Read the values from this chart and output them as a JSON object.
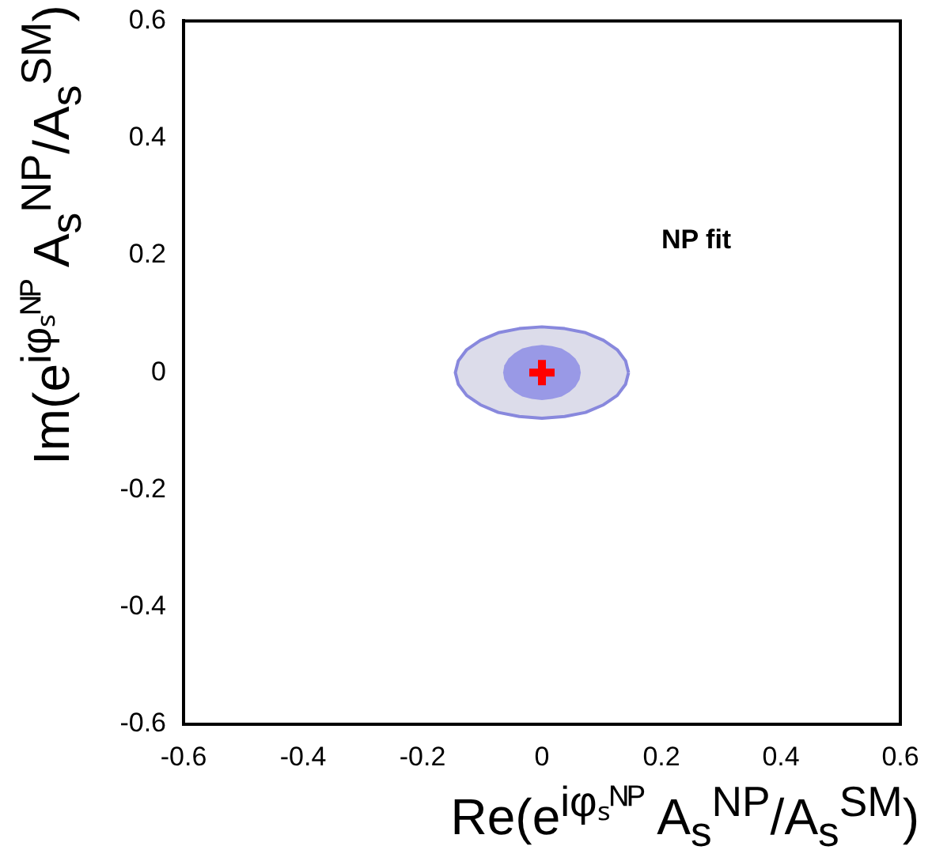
{
  "chart_data": {
    "type": "scatter",
    "xlabel": "Re(e$^{iφₛᴺᴾ}$ A$_{s}$$^{NP}$/A$_{s}$$^{SM}$)",
    "ylabel": "Im(e$^{iφₛᴺᴾ}$ A$_{s}$$^{NP}$/A$_{s}$$^{SM}$)",
    "annotations": [
      "NP fit"
    ],
    "xlim": [
      -0.6,
      0.6
    ],
    "ylim": [
      -0.6,
      0.6
    ],
    "xticks": [
      -0.6,
      -0.4,
      -0.2,
      0,
      0.2,
      0.4,
      0.6
    ],
    "yticks": [
      -0.6,
      -0.4,
      -0.2,
      0,
      0.2,
      0.4,
      0.6
    ],
    "grid": false,
    "legend": false,
    "series": [
      {
        "type": "area",
        "color": "#dcdcea",
        "marker": "none",
        "x": [
          0.145,
          0.14,
          0.126,
          0.103,
          0.073,
          0.038,
          0,
          -0.038,
          -0.073,
          -0.103,
          -0.126,
          -0.14,
          -0.145,
          -0.14,
          -0.126,
          -0.103,
          -0.073,
          -0.038,
          0,
          0.038,
          0.073,
          0.103,
          0.126,
          0.14,
          0.145
        ],
        "values": [
          0,
          0.02,
          0.039,
          0.055,
          0.068,
          0.075,
          0.078,
          0.075,
          0.068,
          0.055,
          0.039,
          0.02,
          0,
          -0.02,
          -0.039,
          -0.055,
          -0.068,
          -0.075,
          -0.078,
          -0.075,
          -0.068,
          -0.055,
          -0.039,
          -0.02,
          0
        ]
      },
      {
        "type": "area",
        "color": "#9999e6",
        "marker": "none",
        "x": [
          0.065,
          0.063,
          0.056,
          0.046,
          0.033,
          0.017,
          0,
          -0.017,
          -0.033,
          -0.046,
          -0.056,
          -0.063,
          -0.065,
          -0.063,
          -0.056,
          -0.046,
          -0.033,
          -0.017,
          0,
          0.017,
          0.033,
          0.046,
          0.056,
          0.063,
          0.065
        ],
        "values": [
          0,
          0.012,
          0.024,
          0.033,
          0.041,
          0.045,
          0.047,
          0.045,
          0.041,
          0.033,
          0.024,
          0.012,
          0,
          -0.012,
          -0.024,
          -0.033,
          -0.041,
          -0.045,
          -0.047,
          -0.045,
          -0.041,
          -0.033,
          -0.024,
          -0.012,
          0
        ]
      },
      {
        "type": "scatter",
        "color": "#ff0000",
        "marker": "cross",
        "x": [
          0
        ],
        "values": [
          0
        ]
      }
    ]
  }
}
